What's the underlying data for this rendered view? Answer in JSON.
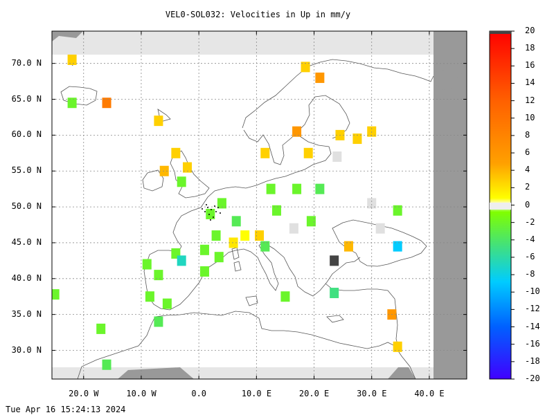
{
  "title": "VEL0-SOL032: Velocities in Up in mm/y",
  "footer_timestamp": "Tue Apr 16 15:24:13 2024",
  "map": {
    "projection": "equirectangular",
    "lon_range": [
      -25.5,
      46.5
    ],
    "lat_range": [
      26,
      74.5
    ],
    "lon_tick_labels": [
      "20.0 W",
      "10.0 W",
      "0.0",
      "10.0 E",
      "20.0 E",
      "30.0 E",
      "40.0 E"
    ],
    "lat_tick_labels": [
      "70.0 N",
      "65.0 N",
      "60.0 N",
      "55.0 N",
      "50.0 N",
      "45.0 N",
      "40.0 N",
      "35.0 N",
      "30.0 N"
    ],
    "grid": true,
    "no_data_color": "#e6e6e6",
    "outside_color": "#999999"
  },
  "colorbar": {
    "min": -20,
    "max": 20,
    "tick_labels": [
      "20",
      "18",
      "16",
      "14",
      "12",
      "10",
      "8",
      "6",
      "4",
      "2",
      "0",
      "-2",
      "-4",
      "-6",
      "-8",
      "-10",
      "-12",
      "-14",
      "-16",
      "-18",
      "-20"
    ]
  },
  "chart_data": {
    "type": "heatmap",
    "title": "VEL0-SOL032: Velocities in Up in mm/y",
    "units": "mm/y",
    "cells": [
      {
        "lon": -22,
        "lat": 70.5,
        "v": 3
      },
      {
        "lon": -22,
        "lat": 64.5,
        "v": -2
      },
      {
        "lon": -16,
        "lat": 64.5,
        "v": 9
      },
      {
        "lon": -7,
        "lat": 62,
        "v": 3
      },
      {
        "lon": -4,
        "lat": 57.5,
        "v": 3
      },
      {
        "lon": -6,
        "lat": 55,
        "v": 4
      },
      {
        "lon": -2,
        "lat": 55.5,
        "v": 3
      },
      {
        "lon": -3,
        "lat": 53.5,
        "v": -2
      },
      {
        "lon": 11.5,
        "lat": 57.5,
        "v": 3
      },
      {
        "lon": 18.5,
        "lat": 69.5,
        "v": 3
      },
      {
        "lon": 21,
        "lat": 68,
        "v": 6
      },
      {
        "lon": 17,
        "lat": 60.5,
        "v": 6
      },
      {
        "lon": 19,
        "lat": 57.5,
        "v": 3
      },
      {
        "lon": 24,
        "lat": 57,
        "v": 0
      },
      {
        "lon": 24.5,
        "lat": 60,
        "v": 3
      },
      {
        "lon": 27.5,
        "lat": 59.5,
        "v": 3
      },
      {
        "lon": 30,
        "lat": 60.5,
        "v": 3
      },
      {
        "lon": 30,
        "lat": 50.5,
        "v": 0
      },
      {
        "lon": 31.5,
        "lat": 47,
        "v": 0
      },
      {
        "lon": 34.5,
        "lat": 49.5,
        "v": -2
      },
      {
        "lon": 34.5,
        "lat": 44.5,
        "v": -6
      },
      {
        "lon": 26,
        "lat": 44.5,
        "v": 4
      },
      {
        "lon": 23.5,
        "lat": 42.5,
        "v": "nodata_dark"
      },
      {
        "lon": 23.5,
        "lat": 38,
        "v": -4
      },
      {
        "lon": 33.5,
        "lat": 35,
        "v": 6
      },
      {
        "lon": 34.5,
        "lat": 30.5,
        "v": 3
      },
      {
        "lon": 15,
        "lat": 37.5,
        "v": -2
      },
      {
        "lon": 12.5,
        "lat": 52.5,
        "v": -2
      },
      {
        "lon": 17,
        "lat": 52.5,
        "v": -2
      },
      {
        "lon": 21,
        "lat": 52.5,
        "v": -3
      },
      {
        "lon": 19.5,
        "lat": 48,
        "v": -2
      },
      {
        "lon": 13.5,
        "lat": 49.5,
        "v": -2
      },
      {
        "lon": 16.5,
        "lat": 47,
        "v": 0
      },
      {
        "lon": 10.5,
        "lat": 46,
        "v": 3
      },
      {
        "lon": 11.5,
        "lat": 44.5,
        "v": -3
      },
      {
        "lon": -9,
        "lat": 42,
        "v": -2
      },
      {
        "lon": -8.5,
        "lat": 37.5,
        "v": -2
      },
      {
        "lon": -7,
        "lat": 40.5,
        "v": -2
      },
      {
        "lon": -5.5,
        "lat": 36.5,
        "v": -2
      },
      {
        "lon": -7,
        "lat": 34,
        "v": -3
      },
      {
        "lon": -17,
        "lat": 33,
        "v": -2
      },
      {
        "lon": -16,
        "lat": 28,
        "v": -3
      },
      {
        "lon": -25,
        "lat": 37.8,
        "v": -2
      },
      {
        "lon": 1,
        "lat": 41,
        "v": -2
      },
      {
        "lon": -4,
        "lat": 43.5,
        "v": -2
      },
      {
        "lon": -3,
        "lat": 42.5,
        "v": -5
      },
      {
        "lon": 2,
        "lat": 49,
        "v": -2
      },
      {
        "lon": 4,
        "lat": 50.5,
        "v": -2
      },
      {
        "lon": 6.5,
        "lat": 48,
        "v": -3
      },
      {
        "lon": 3,
        "lat": 46,
        "v": -2
      },
      {
        "lon": 6,
        "lat": 45,
        "v": 2
      },
      {
        "lon": 8,
        "lat": 46,
        "v": 1
      },
      {
        "lon": 1,
        "lat": 44,
        "v": -2
      },
      {
        "lon": 3.5,
        "lat": 43,
        "v": -2
      }
    ]
  }
}
